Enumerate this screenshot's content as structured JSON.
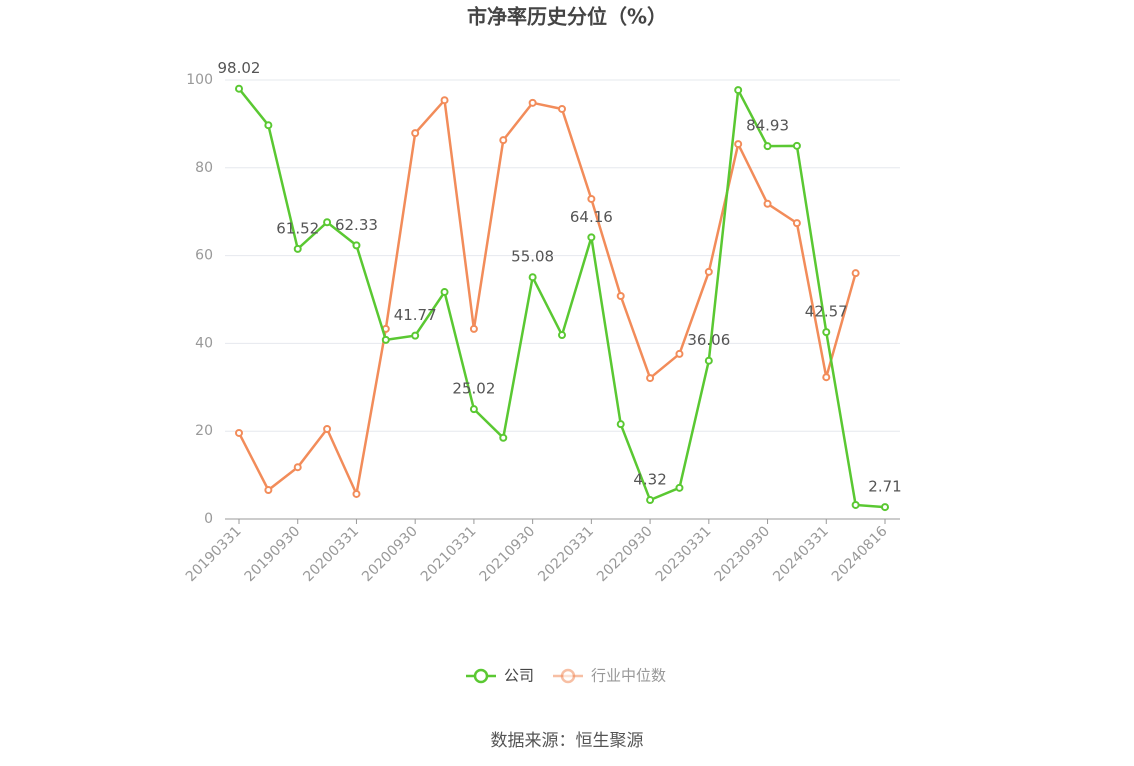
{
  "chart_data": {
    "type": "line",
    "title": "市净率历史分位（%）",
    "source": "数据来源：恒生聚源",
    "categories": [
      "20190331",
      null,
      "20190930",
      null,
      "20200331",
      null,
      "20200930",
      null,
      "20210331",
      null,
      "20210930",
      null,
      "20220331",
      null,
      "20220930",
      null,
      "20230331",
      null,
      "20230930",
      null,
      "20240331",
      null,
      "20240816"
    ],
    "series": [
      {
        "name": "公司",
        "color": "#5ac832",
        "values": [
          98.02,
          89.7,
          61.52,
          67.6,
          62.33,
          40.8,
          41.77,
          51.7,
          25.02,
          18.5,
          55.08,
          41.9,
          64.16,
          21.6,
          4.32,
          7.1,
          36.06,
          97.7,
          84.93,
          85.0,
          42.57,
          3.2,
          2.71
        ],
        "value_labels": [
          "98.02",
          null,
          "61.52",
          null,
          "62.33",
          null,
          "41.77",
          null,
          "25.02",
          null,
          "55.08",
          null,
          "64.16",
          null,
          "4.32",
          null,
          "36.06",
          null,
          "84.93",
          null,
          "42.57",
          null,
          "2.71"
        ]
      },
      {
        "name": "行业中位数",
        "color": "#f28c5a",
        "values": [
          19.6,
          6.6,
          11.8,
          20.5,
          5.7,
          43.3,
          87.9,
          95.4,
          43.3,
          86.3,
          94.8,
          93.4,
          72.9,
          50.8,
          32.1,
          37.6,
          56.3,
          85.4,
          71.8,
          67.4,
          32.3,
          56.0,
          null
        ]
      }
    ],
    "ylim": [
      0,
      100
    ],
    "yticks": [
      0,
      20,
      40,
      60,
      80,
      100
    ],
    "grid": true
  }
}
